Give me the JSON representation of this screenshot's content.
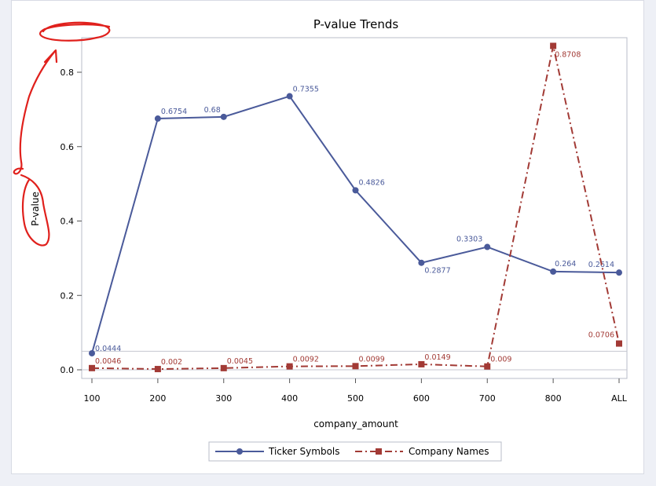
{
  "chart_data": {
    "type": "line",
    "title": "P-value Trends",
    "xlabel": "company_amount",
    "ylabel": "P-value",
    "categories": [
      "100",
      "200",
      "300",
      "400",
      "500",
      "600",
      "700",
      "800",
      "ALL"
    ],
    "yticks": [
      "0.0",
      "0.2",
      "0.4",
      "0.6",
      "0.8"
    ],
    "ylim": [
      -0.02,
      0.9
    ],
    "reference_line": 0.05,
    "series": [
      {
        "name": "Ticker Symbols",
        "color": "#4a5a9a",
        "marker": "circle",
        "line_style": "solid",
        "values": [
          0.0444,
          0.6754,
          0.68,
          0.7355,
          0.4826,
          0.2877,
          0.3303,
          0.264,
          0.2614
        ],
        "labels": [
          "0.0444",
          "0.6754",
          "0.68",
          "0.7355",
          "0.4826",
          "0.2877",
          "0.3303",
          "0.264",
          "0.2614"
        ]
      },
      {
        "name": "Company Names",
        "color": "#a23a35",
        "marker": "square",
        "line_style": "dashdot",
        "values": [
          0.0046,
          0.002,
          0.0045,
          0.0092,
          0.0099,
          0.0149,
          0.009,
          0.8708,
          0.0706
        ],
        "labels": [
          "0.0046",
          "0.002",
          "0.0045",
          "0.0092",
          "0.0099",
          "0.0149",
          "0.009",
          "0.8708",
          "0.0706"
        ]
      }
    ],
    "legend_position": "bottom",
    "grid": false
  },
  "annotation": {
    "description": "red hand-drawn marks",
    "color": "#e0201c"
  }
}
